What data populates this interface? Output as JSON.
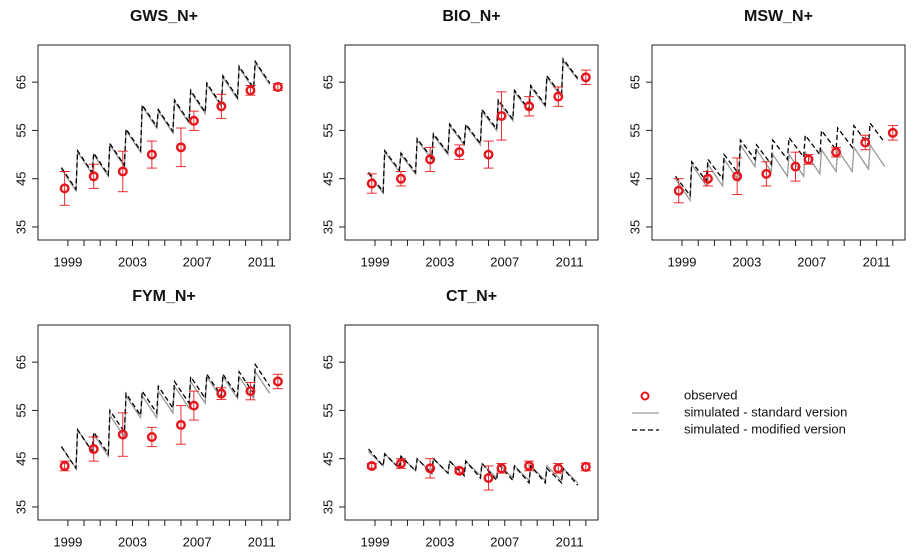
{
  "chart_data": [
    {
      "type": "line",
      "title": "GWS_N+",
      "xlim": [
        1997.15,
        2012.75
      ],
      "ylim": [
        32.3,
        72.7
      ],
      "xticks": [
        1999,
        2003,
        2007,
        2011
      ],
      "xminorticks": [
        2000,
        2001,
        2002,
        2004,
        2005,
        2006,
        2008,
        2009,
        2010,
        2012
      ],
      "yticks": [
        35,
        45,
        55,
        65
      ],
      "x": [
        1998.6,
        1999.5,
        1999.6,
        2000.5,
        2000.6,
        2001.5,
        2001.6,
        2002.5,
        2002.6,
        2003.5,
        2003.6,
        2004.5,
        2004.6,
        2005.5,
        2005.6,
        2006.5,
        2006.6,
        2007.5,
        2007.6,
        2008.5,
        2008.6,
        2009.5,
        2009.6,
        2010.5,
        2010.6,
        2011.5
      ],
      "series": [
        {
          "name": "observed",
          "mode": "markers",
          "color": "#e8141c",
          "x": [
            1998.8,
            2000.6,
            2002.4,
            2004.2,
            2006.0,
            2006.8,
            2008.5,
            2010.3,
            2012.0
          ],
          "values": [
            43,
            45.5,
            46.5,
            50,
            51.5,
            57,
            60,
            63.3,
            64
          ],
          "errors": [
            3.5,
            2.5,
            4.2,
            2.8,
            4,
            2,
            2.5,
            1,
            0.7
          ]
        },
        {
          "name": "simulated - standard version",
          "mode": "line",
          "color": "#999999",
          "dashed": false,
          "values": [
            47,
            42.5,
            50.5,
            46,
            50,
            45.5,
            52,
            47.5,
            55,
            50.5,
            60,
            55.5,
            59,
            54.5,
            61,
            56.5,
            63,
            58.5,
            64.5,
            60,
            66,
            61.5,
            68,
            63.5,
            69,
            64.5
          ]
        },
        {
          "name": "simulated - modified version",
          "mode": "line",
          "color": "#000000",
          "dashed": true,
          "values": [
            47.3,
            42.8,
            50.8,
            46.3,
            50.3,
            45.8,
            52.3,
            47.8,
            55.3,
            50.8,
            60.3,
            55.8,
            59.3,
            54.8,
            61.3,
            56.8,
            63.3,
            58.8,
            64.8,
            60.3,
            66.3,
            61.8,
            68.3,
            63.8,
            69.3,
            64.8
          ]
        }
      ]
    },
    {
      "type": "line",
      "title": "BIO_N+",
      "xlim": [
        1997.15,
        2012.75
      ],
      "ylim": [
        32.3,
        72.7
      ],
      "xticks": [
        1999,
        2003,
        2007,
        2011
      ],
      "xminorticks": [
        2000,
        2001,
        2002,
        2004,
        2005,
        2006,
        2008,
        2009,
        2010,
        2012
      ],
      "yticks": [
        35,
        45,
        55,
        65
      ],
      "x": [
        1998.6,
        1999.5,
        1999.6,
        2000.5,
        2000.6,
        2001.5,
        2001.6,
        2002.5,
        2002.6,
        2003.5,
        2003.6,
        2004.5,
        2004.6,
        2005.5,
        2005.6,
        2006.5,
        2006.6,
        2007.5,
        2007.6,
        2008.5,
        2008.6,
        2009.5,
        2009.6,
        2010.5,
        2010.6,
        2011.5
      ],
      "series": [
        {
          "mode": "markers",
          "color": "#e8141c",
          "x": [
            1998.8,
            2000.6,
            2002.4,
            2004.2,
            2006.0,
            2006.8,
            2008.5,
            2010.3,
            2012.0
          ],
          "values": [
            44,
            45,
            49,
            50.5,
            50,
            58,
            60,
            62,
            66
          ],
          "errors": [
            2,
            1.5,
            2.5,
            1.5,
            2.8,
            5,
            2,
            2,
            1.5
          ]
        },
        {
          "mode": "line",
          "color": "#999999",
          "dashed": false,
          "values": [
            46,
            42,
            50.5,
            46.5,
            50,
            46,
            53,
            49,
            54,
            50,
            56,
            52,
            56,
            52,
            59,
            55,
            61,
            57,
            63,
            59,
            64,
            60,
            66,
            62,
            69.5,
            65.5
          ]
        },
        {
          "mode": "line",
          "color": "#000000",
          "dashed": true,
          "values": [
            46.3,
            42.3,
            50.8,
            46.8,
            50.3,
            46.3,
            53.3,
            49.3,
            54.3,
            50.3,
            56.3,
            52.3,
            56.3,
            52.3,
            59.3,
            55.3,
            61.3,
            57.3,
            63.3,
            59.3,
            64.3,
            60.3,
            66.3,
            62.3,
            69.8,
            65.8
          ]
        }
      ]
    },
    {
      "type": "line",
      "title": "MSW_N+",
      "xlim": [
        1997.15,
        2012.75
      ],
      "ylim": [
        32.3,
        72.7
      ],
      "xticks": [
        1999,
        2003,
        2007,
        2011
      ],
      "xminorticks": [
        2000,
        2001,
        2002,
        2004,
        2005,
        2006,
        2008,
        2009,
        2010,
        2012
      ],
      "yticks": [
        35,
        45,
        55,
        65
      ],
      "x": [
        1998.6,
        1999.5,
        1999.6,
        2000.5,
        2000.6,
        2001.5,
        2001.6,
        2002.5,
        2002.6,
        2003.5,
        2003.6,
        2004.5,
        2004.6,
        2005.5,
        2005.6,
        2006.5,
        2006.6,
        2007.5,
        2007.6,
        2008.5,
        2008.6,
        2009.5,
        2009.6,
        2010.5,
        2010.6,
        2011.5
      ],
      "series": [
        {
          "mode": "markers",
          "color": "#e8141c",
          "x": [
            1998.8,
            2000.6,
            2002.4,
            2004.2,
            2006.0,
            2006.8,
            2008.5,
            2010.3,
            2012.0
          ],
          "values": [
            42.5,
            45,
            45.5,
            46,
            47.5,
            49,
            50.5,
            52.5,
            54.5
          ],
          "errors": [
            2.5,
            1.5,
            3.8,
            2.5,
            3,
            1,
            1,
            1.5,
            1.5
          ]
        },
        {
          "mode": "line",
          "color": "#999999",
          "dashed": false,
          "values": [
            45,
            40.5,
            48,
            43.5,
            48,
            43.5,
            49,
            44.5,
            52,
            47.5,
            51,
            46.5,
            50,
            45.5,
            50,
            45.5,
            50.5,
            46,
            51,
            46.5,
            51,
            46.5,
            51.5,
            47,
            52,
            47.5
          ]
        },
        {
          "mode": "line",
          "color": "#000000",
          "dashed": true,
          "values": [
            45.5,
            41.5,
            48.5,
            44.5,
            49,
            45,
            50,
            46,
            53,
            49,
            52,
            48,
            53,
            49,
            53.5,
            49.5,
            54,
            50,
            55,
            51,
            55.5,
            51.5,
            56,
            52,
            56.5,
            52.5
          ]
        }
      ]
    },
    {
      "type": "line",
      "title": "FYM_N+",
      "xlim": [
        1997.15,
        2012.75
      ],
      "ylim": [
        32.3,
        72.7
      ],
      "xticks": [
        1999,
        2003,
        2007,
        2011
      ],
      "xminorticks": [
        2000,
        2001,
        2002,
        2004,
        2005,
        2006,
        2008,
        2009,
        2010,
        2012
      ],
      "yticks": [
        35,
        45,
        55,
        65
      ],
      "x": [
        1998.6,
        1999.5,
        1999.6,
        2000.5,
        2000.6,
        2001.5,
        2001.6,
        2002.5,
        2002.6,
        2003.5,
        2003.6,
        2004.5,
        2004.6,
        2005.5,
        2005.6,
        2006.5,
        2006.6,
        2007.5,
        2007.6,
        2008.5,
        2008.6,
        2009.5,
        2009.6,
        2010.5,
        2010.6,
        2011.5
      ],
      "series": [
        {
          "mode": "markers",
          "color": "#e8141c",
          "x": [
            1998.8,
            2000.6,
            2002.4,
            2004.2,
            2006.0,
            2006.8,
            2008.5,
            2010.3,
            2012.0
          ],
          "values": [
            43.5,
            47,
            50,
            49.5,
            52,
            56,
            58.5,
            59,
            61
          ],
          "errors": [
            1,
            2.5,
            4.5,
            2,
            4,
            3,
            1.2,
            1.8,
            1.5
          ]
        },
        {
          "mode": "line",
          "color": "#999999",
          "dashed": false,
          "values": [
            47.5,
            43,
            51,
            46.5,
            50,
            45.5,
            54,
            49.5,
            58,
            53.5,
            58,
            53.5,
            59,
            54.5,
            60,
            55.5,
            61,
            56.5,
            62,
            57.5,
            62,
            57.5,
            62,
            57.5,
            63,
            58.5
          ]
        },
        {
          "mode": "line",
          "color": "#000000",
          "dashed": true,
          "values": [
            47.5,
            43,
            51,
            46.5,
            50.5,
            46,
            55,
            50.5,
            58.5,
            54,
            59,
            54.5,
            60,
            55.5,
            61,
            56.5,
            62,
            57.5,
            62.5,
            58,
            62.5,
            58,
            63,
            58.5,
            64.5,
            60
          ]
        }
      ]
    },
    {
      "type": "line",
      "title": "CT_N+",
      "xlim": [
        1997.15,
        2012.75
      ],
      "ylim": [
        32.3,
        72.7
      ],
      "xticks": [
        1999,
        2003,
        2007,
        2011
      ],
      "xminorticks": [
        2000,
        2001,
        2002,
        2004,
        2005,
        2006,
        2008,
        2009,
        2010,
        2012
      ],
      "yticks": [
        35,
        45,
        55,
        65
      ],
      "x": [
        1998.6,
        1999.5,
        1999.6,
        2000.5,
        2000.6,
        2001.5,
        2001.6,
        2002.5,
        2002.6,
        2003.5,
        2003.6,
        2004.5,
        2004.6,
        2005.5,
        2005.6,
        2006.5,
        2006.6,
        2007.5,
        2007.6,
        2008.5,
        2008.6,
        2009.5,
        2009.6,
        2010.5,
        2010.6,
        2011.5
      ],
      "series": [
        {
          "mode": "markers",
          "color": "#e8141c",
          "x": [
            1998.8,
            2000.6,
            2002.4,
            2004.2,
            2006.0,
            2006.8,
            2008.5,
            2010.3,
            2012.0
          ],
          "values": [
            43.5,
            44,
            43,
            42.5,
            41,
            43,
            43.5,
            43,
            43.3
          ],
          "errors": [
            0.5,
            1,
            2,
            0.5,
            2.5,
            1,
            1,
            1,
            0.8
          ]
        },
        {
          "mode": "line",
          "color": "#999999",
          "dashed": false,
          "values": [
            46.5,
            43.5,
            46,
            43,
            45.5,
            42.5,
            45,
            42,
            45,
            42,
            44.5,
            41.5,
            44.5,
            41.5,
            44,
            41,
            44,
            41,
            43.5,
            40.5,
            43.5,
            40.5,
            43.5,
            40.5,
            43,
            40
          ]
        },
        {
          "mode": "line",
          "color": "#000000",
          "dashed": true,
          "values": [
            47,
            43.5,
            46,
            43,
            45.5,
            42.5,
            45,
            42,
            45,
            42,
            44.5,
            41.5,
            44.5,
            41,
            44,
            40.5,
            44,
            40.5,
            43.5,
            40,
            43.5,
            40,
            43,
            40,
            43,
            39.5
          ]
        }
      ]
    }
  ]
}
